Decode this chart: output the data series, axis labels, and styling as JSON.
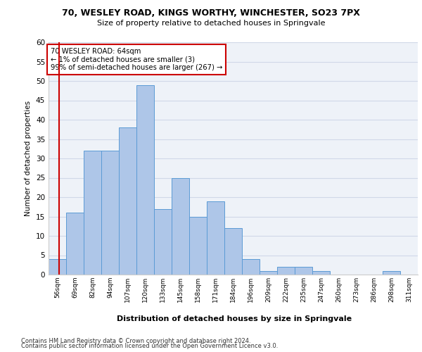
{
  "title1": "70, WESLEY ROAD, KINGS WORTHY, WINCHESTER, SO23 7PX",
  "title2": "Size of property relative to detached houses in Springvale",
  "xlabel": "Distribution of detached houses by size in Springvale",
  "ylabel": "Number of detached properties",
  "bins": [
    "56sqm",
    "69sqm",
    "82sqm",
    "94sqm",
    "107sqm",
    "120sqm",
    "133sqm",
    "145sqm",
    "158sqm",
    "171sqm",
    "184sqm",
    "196sqm",
    "209sqm",
    "222sqm",
    "235sqm",
    "247sqm",
    "260sqm",
    "273sqm",
    "286sqm",
    "298sqm",
    "311sqm"
  ],
  "values": [
    4,
    16,
    32,
    32,
    38,
    49,
    17,
    25,
    15,
    19,
    12,
    4,
    1,
    2,
    2,
    1,
    0,
    0,
    0,
    1,
    0
  ],
  "bar_color": "#aec6e8",
  "bar_edge_color": "#5b9bd5",
  "grid_color": "#d0d8e8",
  "bg_color": "#eef2f8",
  "annotation_text": "70 WESLEY ROAD: 64sqm\n← 1% of detached houses are smaller (3)\n99% of semi-detached houses are larger (267) →",
  "annotation_box_color": "#ffffff",
  "annotation_box_edge": "#cc0000",
  "subject_line_color": "#cc0000",
  "ylim": [
    0,
    60
  ],
  "yticks": [
    0,
    5,
    10,
    15,
    20,
    25,
    30,
    35,
    40,
    45,
    50,
    55,
    60
  ],
  "footer1": "Contains HM Land Registry data © Crown copyright and database right 2024.",
  "footer2": "Contains public sector information licensed under the Open Government Licence v3.0."
}
